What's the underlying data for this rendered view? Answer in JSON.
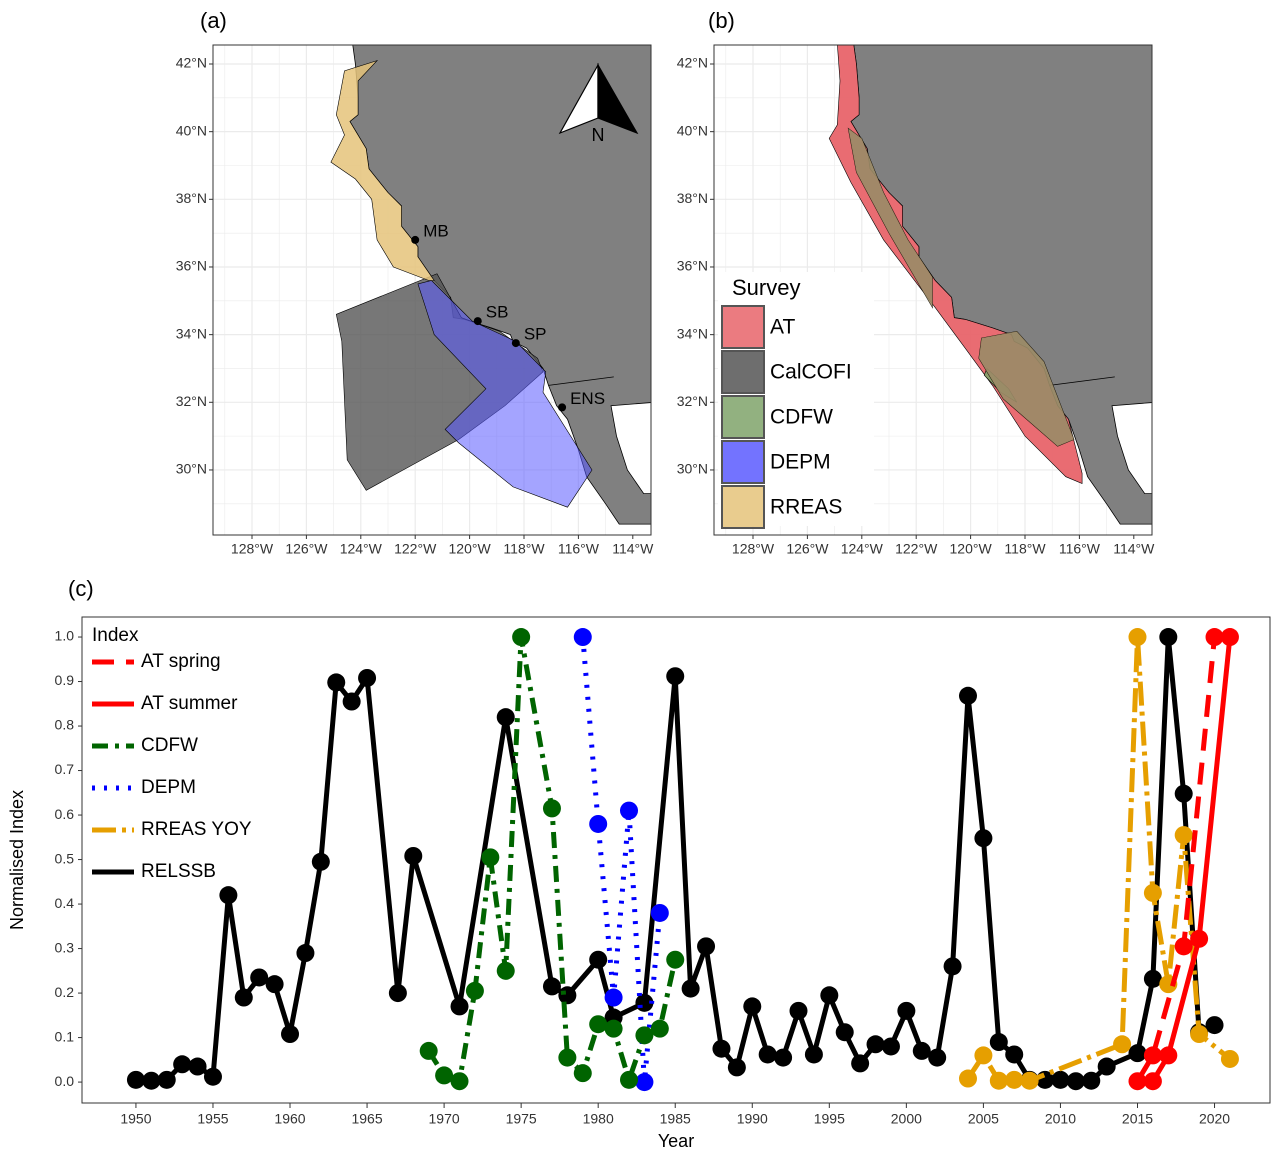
{
  "panel_labels": {
    "a": "(a)",
    "b": "(b)",
    "c": "(c)"
  },
  "map_axes": {
    "lat_labels": [
      "42°N",
      "40°N",
      "38°N",
      "36°N",
      "34°N",
      "32°N",
      "30°N"
    ],
    "lon_labels": [
      "128°W",
      "126°W",
      "124°W",
      "122°W",
      "120°W",
      "118°W",
      "116°W",
      "114°W"
    ]
  },
  "map_a": {
    "places": [
      "MB",
      "SB",
      "SP",
      "ENS"
    ],
    "north_label": "N"
  },
  "map_b": {
    "legend_title": "Survey",
    "legend": [
      {
        "name": "AT",
        "color": "#e8646a"
      },
      {
        "name": "CalCOFI",
        "color": "#555555"
      },
      {
        "name": "CDFW",
        "color": "#7fa36a"
      },
      {
        "name": "DEPM",
        "color": "#5a5aff"
      },
      {
        "name": "RREAS",
        "color": "#e5c37a"
      }
    ]
  },
  "chart_data": {
    "type": "line",
    "x_label": "Year",
    "y_label": "Normalised Index",
    "legend_title": "Index",
    "xlim": [
      1946.5,
      2023.6
    ],
    "ylim": [
      -0.047,
      1.045
    ],
    "xticks": [
      1950,
      1955,
      1960,
      1965,
      1970,
      1975,
      1980,
      1985,
      1990,
      1995,
      2000,
      2005,
      2010,
      2015,
      2020
    ],
    "yticks": [
      {
        "value": 0,
        "label": "0.0"
      },
      0.1,
      0.2,
      0.3,
      0.4,
      0.5,
      0.6,
      0.7,
      0.8,
      0.9,
      {
        "value": 1,
        "label": "1.0"
      }
    ],
    "series": [
      {
        "name": "AT spring",
        "color": "#ff0000",
        "linestyle": "dashed",
        "x": [
          2015,
          2016,
          2018,
          2020
        ],
        "values": [
          0.002,
          0.06,
          0.305,
          1.0
        ]
      },
      {
        "name": "AT summer",
        "color": "#ff0000",
        "linestyle": "solid",
        "x": [
          2016,
          2017,
          2019,
          2021
        ],
        "values": [
          0.002,
          0.06,
          0.322,
          1.0
        ]
      },
      {
        "name": "CDFW",
        "color": "#006400",
        "linestyle": "dashdot",
        "x": [
          1969,
          1970,
          1971,
          1972,
          1973,
          1974,
          1975,
          1977,
          1978,
          1979,
          1980,
          1981,
          1982,
          1983,
          1984,
          1985
        ],
        "values": [
          0.07,
          0.015,
          0.002,
          0.205,
          0.505,
          0.25,
          1.0,
          0.615,
          0.055,
          0.02,
          0.13,
          0.12,
          0.005,
          0.105,
          0.12,
          0.275
        ]
      },
      {
        "name": "DEPM",
        "color": "#0000ff",
        "linestyle": "dotted",
        "x": [
          1979,
          1980,
          1981,
          1982,
          1983,
          1984
        ],
        "values": [
          1.0,
          0.58,
          0.19,
          0.61,
          0.0,
          0.38
        ]
      },
      {
        "name": "RREAS YOY",
        "color": "#e69f00",
        "linestyle": "longdashdot",
        "x": [
          2004,
          2005,
          2006,
          2007,
          2008,
          2014,
          2015,
          2016,
          2017,
          2018,
          2019,
          2021
        ],
        "values": [
          0.008,
          0.06,
          0.003,
          0.005,
          0.003,
          0.085,
          1.0,
          0.425,
          0.22,
          0.555,
          0.108,
          0.052
        ]
      },
      {
        "name": "RELSSB",
        "color": "#000000",
        "linestyle": "solid",
        "x": [
          1950,
          1951,
          1952,
          1953,
          1954,
          1955,
          1956,
          1957,
          1958,
          1959,
          1960,
          1961,
          1962,
          1963,
          1964,
          1965,
          1967,
          1968,
          1971,
          1974,
          1977,
          1978,
          1980,
          1981,
          1983,
          1985,
          1986,
          1987,
          1988,
          1989,
          1990,
          1991,
          1992,
          1993,
          1994,
          1995,
          1996,
          1997,
          1998,
          1999,
          2000,
          2001,
          2002,
          2003,
          2004,
          2005,
          2006,
          2007,
          2008,
          2009,
          2010,
          2011,
          2012,
          2013,
          2015,
          2016,
          2017,
          2018,
          2019,
          2020
        ],
        "values": [
          0.005,
          0.003,
          0.005,
          0.04,
          0.035,
          0.012,
          0.42,
          0.19,
          0.235,
          0.22,
          0.108,
          0.29,
          0.495,
          0.898,
          0.855,
          0.908,
          0.2,
          0.508,
          0.17,
          0.82,
          0.215,
          0.195,
          0.275,
          0.145,
          0.178,
          0.912,
          0.21,
          0.305,
          0.075,
          0.033,
          0.17,
          0.062,
          0.055,
          0.16,
          0.062,
          0.195,
          0.112,
          0.042,
          0.085,
          0.08,
          0.16,
          0.07,
          0.055,
          0.26,
          0.868,
          0.548,
          0.09,
          0.062,
          0.005,
          0.005,
          0.005,
          0.002,
          0.003,
          0.035,
          0.065,
          0.232,
          1.0,
          0.648,
          0.112,
          0.128
        ]
      }
    ]
  }
}
